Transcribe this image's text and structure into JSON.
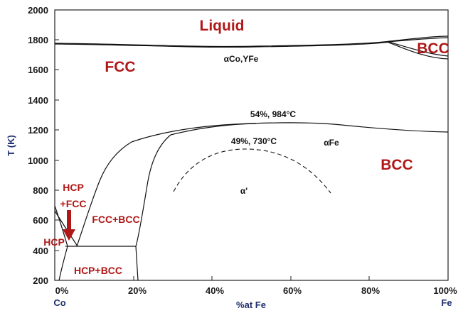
{
  "axes": {
    "y_label": "T (K)",
    "x_label": "%at Fe",
    "x_left_element": "Co",
    "x_right_element": "Fe",
    "y_ticks": [
      "2000",
      "1800",
      "1600",
      "1400",
      "1200",
      "1000",
      "800",
      "600",
      "400",
      "200"
    ],
    "x_ticks": [
      "0%",
      "20%",
      "40%",
      "60%",
      "80%",
      "100%"
    ]
  },
  "regions": {
    "liquid": "Liquid",
    "fcc": "FCC",
    "bcc_high": "BCC",
    "gamma": "αCo,ΥFe",
    "bcc_low": "BCC",
    "alpha_fe": "αFe",
    "alpha_prime": "α'",
    "hcp": "HCP",
    "hcp_fcc_1": "HCP",
    "hcp_fcc_2": "+FCC",
    "fcc_bcc": "FCC+BCC",
    "hcp_bcc": "HCP+BCC"
  },
  "annotations": {
    "max_order": "54%, 984°C",
    "ordering": "49%, 730°C"
  },
  "colors": {
    "phase_label": "#b01818",
    "axis_title": "#1f2f6e",
    "arrow": "#b01818"
  }
}
